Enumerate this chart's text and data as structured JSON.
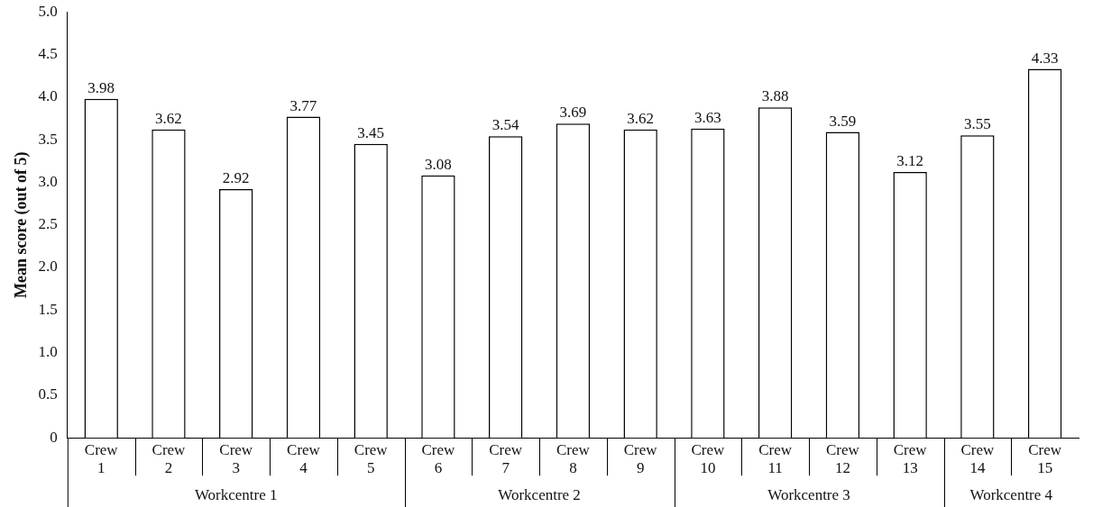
{
  "chart_data": {
    "type": "bar",
    "ylabel": "Mean score (out of 5)",
    "categories": [
      "Crew 1",
      "Crew 2",
      "Crew 3",
      "Crew 4",
      "Crew 5",
      "Crew 6",
      "Crew 7",
      "Crew 8",
      "Crew 9",
      "Crew 10",
      "Crew 11",
      "Crew 12",
      "Crew 13",
      "Crew 14",
      "Crew 15"
    ],
    "values": [
      3.98,
      3.62,
      2.92,
      3.77,
      3.45,
      3.08,
      3.54,
      3.69,
      3.62,
      3.63,
      3.88,
      3.59,
      3.12,
      3.55,
      4.33
    ],
    "color": "#ffffff",
    "data_labels": true,
    "grid": false,
    "legend": false,
    "ylim": [
      0,
      5
    ],
    "yticks": [
      0,
      {
        "value": 0.5,
        "label": "0.5"
      },
      {
        "value": 1,
        "label": "1.0"
      },
      {
        "value": 1.5,
        "label": "1.5"
      },
      {
        "value": 2,
        "label": "2.0"
      },
      {
        "value": 2.5,
        "label": "2.5"
      },
      {
        "value": 3,
        "label": "3.0"
      },
      {
        "value": 3.5,
        "label": "3.5"
      },
      {
        "value": 4,
        "label": "4.0"
      },
      {
        "value": 4.5,
        "label": "4.5"
      },
      {
        "value": 5,
        "label": "5.0"
      }
    ],
    "annotations": [
      "Workcentre 1",
      "Workcentre 2",
      "Workcentre 3",
      "Workcentre 4"
    ]
  }
}
